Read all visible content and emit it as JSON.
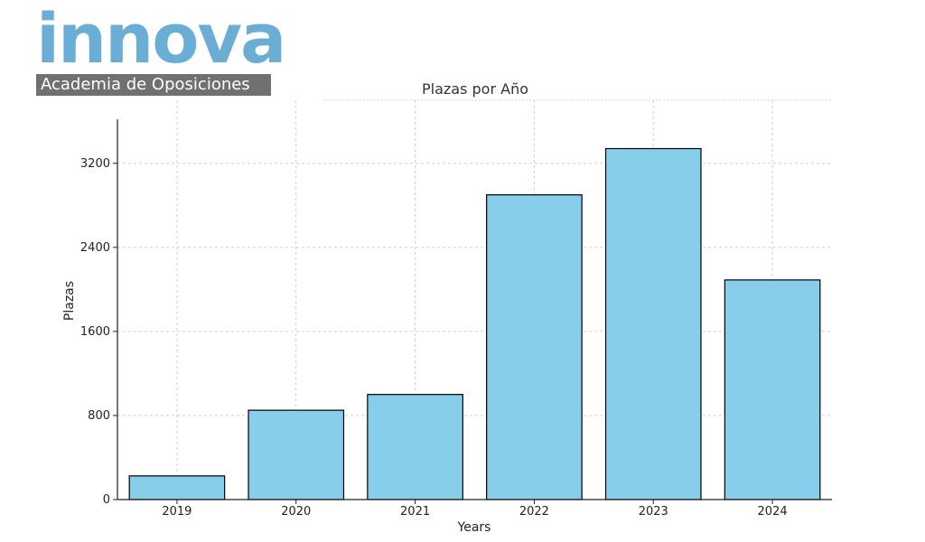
{
  "logo": {
    "wordmark": "innova",
    "tagline": "Academia de Oposiciones",
    "colors": {
      "wordmark": "#6aaed6",
      "band": "#707070"
    }
  },
  "chart_data": {
    "type": "bar",
    "title": "Plazas por Año",
    "xlabel": "Years",
    "ylabel": "Plazas",
    "categories": [
      "2019",
      "2020",
      "2021",
      "2022",
      "2023",
      "2024"
    ],
    "values": [
      225,
      850,
      1000,
      2900,
      3340,
      2090
    ],
    "yticks": [
      0,
      800,
      1600,
      2400,
      3200
    ],
    "ylim": [
      0,
      3800
    ],
    "grid": true,
    "bar_color": "#87ceeb",
    "bar_edge_color": "#000000"
  }
}
